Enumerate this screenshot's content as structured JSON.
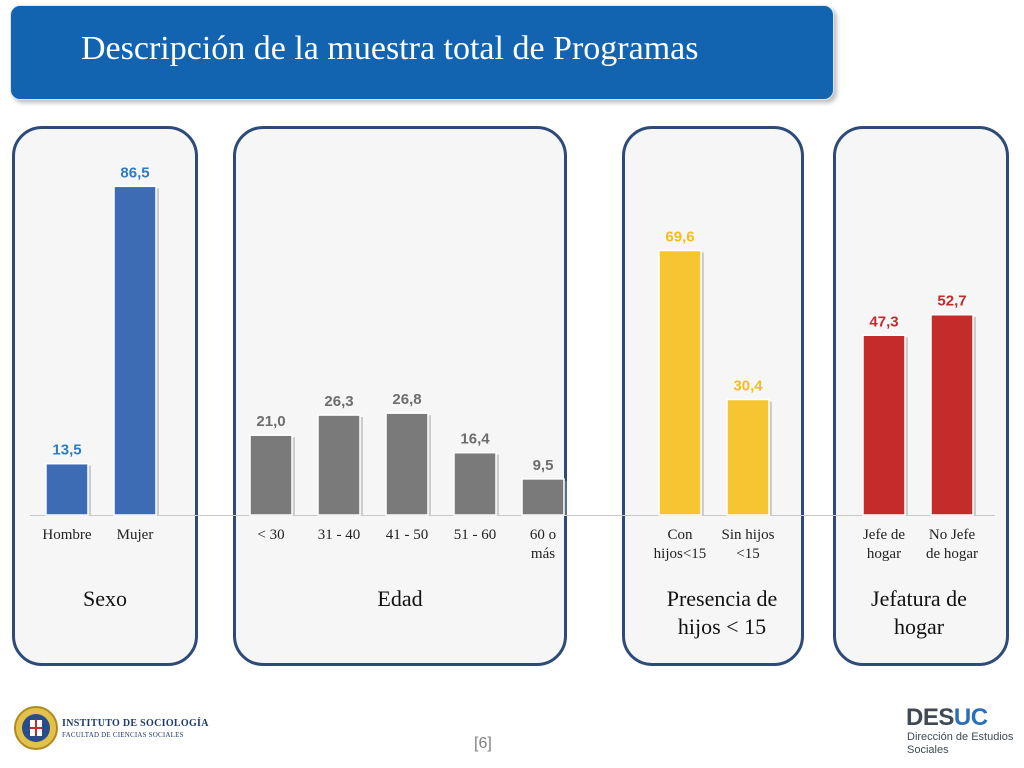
{
  "title": "Descripción de la muestra total de Programas",
  "groups": [
    {
      "label": "Sexo"
    },
    {
      "label": "Edad"
    },
    {
      "label_line1": "Presencia de",
      "label_line2": "hijos < 15"
    },
    {
      "label_line1": "Jefatura de",
      "label_line2": "hogar"
    }
  ],
  "chart_data": {
    "type": "bar",
    "ylim": [
      0,
      100
    ],
    "series": [
      {
        "group": "Sexo",
        "color": "#3d6cb4",
        "label_color": "#2f7bbf",
        "categories": [
          [
            "Hombre"
          ],
          [
            "Mujer"
          ]
        ],
        "values": [
          13.5,
          86.5
        ],
        "labels": [
          "13,5",
          "86,5"
        ]
      },
      {
        "group": "Edad",
        "color": "#7a7a7a",
        "label_color": "#6d6d6d",
        "categories": [
          [
            "< 30"
          ],
          [
            "31 - 40"
          ],
          [
            "41 - 50"
          ],
          [
            "51 - 60"
          ],
          [
            "60 o",
            "más"
          ]
        ],
        "values": [
          21.0,
          26.3,
          26.8,
          16.4,
          9.5
        ],
        "labels": [
          "21,0",
          "26,3",
          "26,8",
          "16,4",
          "9,5"
        ]
      },
      {
        "group": "Presencia de hijos < 15",
        "color": "#f6c531",
        "label_color": "#f3bd1e",
        "categories": [
          [
            "Con",
            "hijos<15"
          ],
          [
            "Sin hijos",
            "<15"
          ]
        ],
        "values": [
          69.6,
          30.4
        ],
        "labels": [
          "69,6",
          "30,4"
        ]
      },
      {
        "group": "Jefatura de hogar",
        "color": "#c42b2b",
        "label_color": "#c42b2b",
        "categories": [
          [
            "Jefe de",
            "hogar"
          ],
          [
            "No Jefe",
            "de hogar"
          ]
        ],
        "values": [
          47.3,
          52.7
        ],
        "labels": [
          "47,3",
          "52,7"
        ]
      }
    ]
  },
  "footer": {
    "institute_line1": "INSTITUTO DE SOCIOLOGÍA",
    "institute_line2": "FACULTAD DE CIENCIAS SOCIALES",
    "page_number": "[6]",
    "desuc_a": "DES",
    "desuc_b": "UC",
    "desuc_sub1": "Dirección de Estudios",
    "desuc_sub2": "Sociales"
  }
}
